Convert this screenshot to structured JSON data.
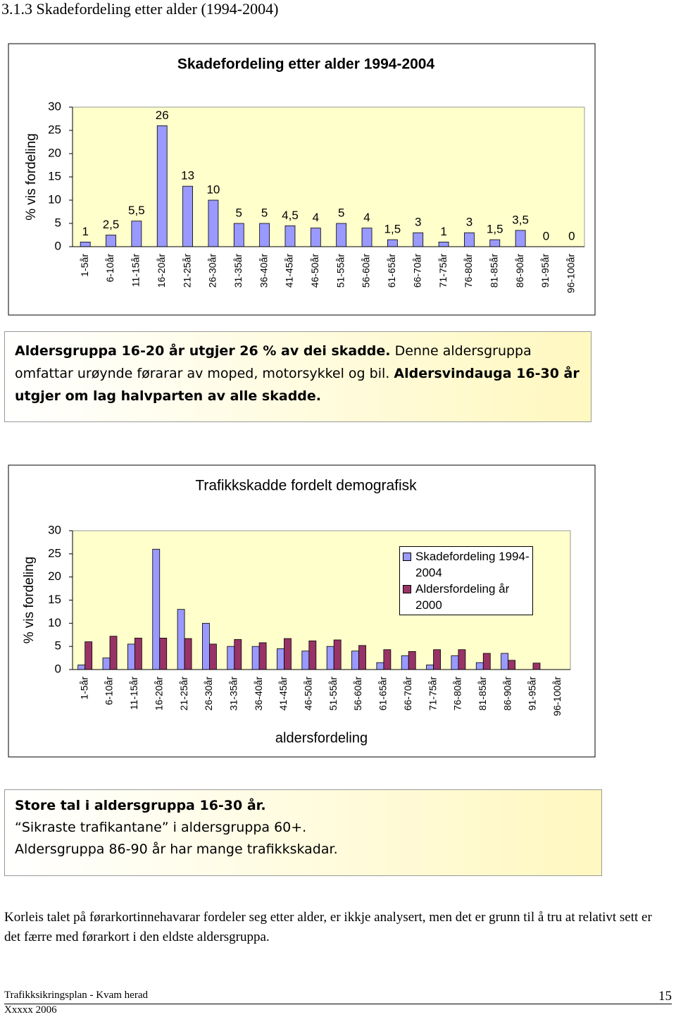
{
  "heading": "3.1.3 Skadefordeling etter alder (1994-2004)",
  "chart_data": [
    {
      "type": "bar",
      "title": "Skadefordeling etter alder 1994-2004",
      "y_label": "% vis fordeling",
      "categories": [
        "1-5år",
        "6-10år",
        "11-15år",
        "16-20år",
        "21-25år",
        "26-30år",
        "31-35år",
        "36-40år",
        "41-45år",
        "46-50år",
        "51-55år",
        "56-60år",
        "61-65år",
        "66-70år",
        "71-75år",
        "76-80år",
        "81-85år",
        "86-90år",
        "91-95år",
        "96-100år"
      ],
      "values": [
        1,
        2.5,
        5.5,
        26,
        13,
        10,
        5,
        5,
        4.5,
        4,
        5,
        4,
        1.5,
        3,
        1,
        3,
        1.5,
        3.5,
        0,
        0
      ],
      "value_labels": [
        "1",
        "2,5",
        "5,5",
        "26",
        "13",
        "10",
        "5",
        "5",
        "4,5",
        "4",
        "5",
        "4",
        "1,5",
        "3",
        "1",
        "3",
        "1,5",
        "3,5",
        "0",
        "0"
      ],
      "color": "#9999ff",
      "ylim": [
        0,
        30
      ],
      "yticks": [
        0,
        5,
        10,
        15,
        20,
        25,
        30
      ]
    },
    {
      "type": "bar",
      "title": "Trafikkskadde fordelt demografisk",
      "y_label": "% vis fordeling",
      "x_label": "aldersfordeling",
      "categories": [
        "1-5år",
        "6-10år",
        "11-15år",
        "16-20år",
        "21-25år",
        "26-30år",
        "31-35år",
        "36-40år",
        "41-45år",
        "46-50år",
        "51-55år",
        "56-60år",
        "61-65år",
        "66-70år",
        "71-75år",
        "76-80år",
        "81-85år",
        "86-90år",
        "91-95år",
        "96-100år"
      ],
      "series": [
        {
          "name": "Skadefordeling 1994-2004",
          "color": "#9999ff",
          "values": [
            1,
            2.5,
            5.5,
            26,
            13,
            10,
            5,
            5,
            4.5,
            4,
            5,
            4,
            1.5,
            3,
            1,
            3,
            1.5,
            3.5,
            0,
            0
          ]
        },
        {
          "name": "Aldersfordeling år 2000",
          "color": "#993366",
          "values": [
            6,
            7.2,
            6.8,
            6.8,
            6.7,
            5.5,
            6.5,
            5.8,
            6.7,
            6.2,
            6.4,
            5.2,
            4.3,
            3.9,
            4.3,
            4.3,
            3.5,
            2,
            1.4,
            0
          ]
        }
      ],
      "ylim": [
        0,
        30
      ],
      "yticks": [
        0,
        5,
        10,
        15,
        20,
        25,
        30
      ],
      "legend": "upper right"
    }
  ],
  "note_box_1": [
    "Aldersgruppa 16-20 år utgjer 26 % av dei skadde.",
    "Denne aldersgruppa omfattar urøynde førarar av moped, motorsykkel og bil.",
    "Aldersvindauga 16-30 år utgjer om lag halvparten av alle skadde."
  ],
  "note_box_2": [
    "Store tal i aldersgruppa 16-30 år.",
    "“Sikraste trafikantane” i aldersgruppa 60+.",
    "Aldersgruppa 86-90 år har mange trafikkskadar."
  ],
  "paragraph": "Korleis talet på førarkortinnehavarar fordeler seg etter alder, er ikkje analysert, men det er grunn til å tru at relativt sett er det færre med førarkort i den eldste aldersgruppa.",
  "footer": {
    "left": "Trafikksikringsplan - Kvam herad",
    "date": "Xxxxx 2006",
    "page": "15"
  }
}
